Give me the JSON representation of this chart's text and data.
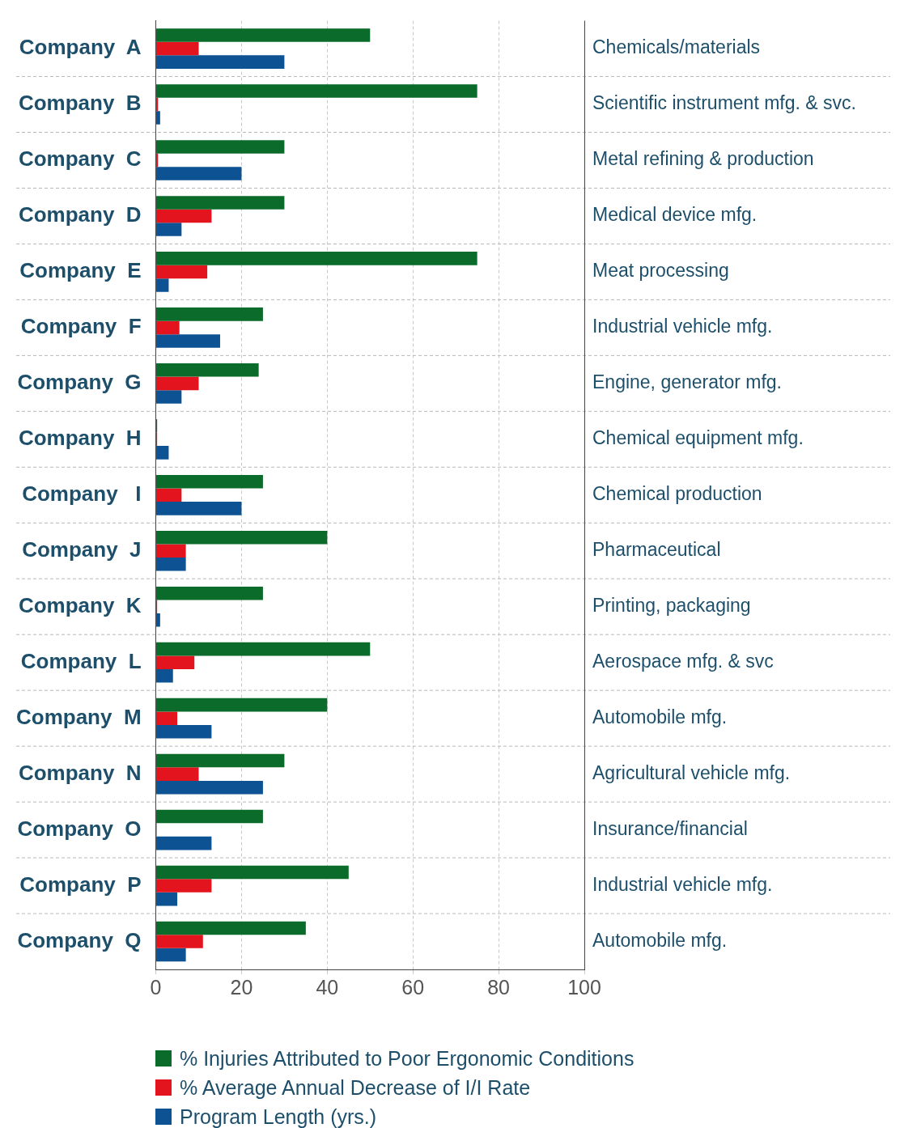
{
  "chart_data": {
    "type": "bar",
    "orientation": "horizontal",
    "categories": [
      "Company  A",
      "Company  B",
      "Company  C",
      "Company  D",
      "Company  E",
      "Company  F",
      "Company  G",
      "Company  H",
      "Company   I",
      "Company  J",
      "Company  K",
      "Company  L",
      "Company  M",
      "Company  N",
      "Company  O",
      "Company  P",
      "Company  Q"
    ],
    "y2_categories": [
      "Chemicals/materials",
      "Scientific instrument mfg. & svc.",
      "Metal refining & production",
      "Medical device mfg.",
      "Meat processing",
      "Industrial vehicle mfg.",
      "Engine, generator mfg.",
      "Chemical equipment mfg.",
      "Chemical production",
      "Pharmaceutical",
      "Printing, packaging",
      "Aerospace mfg. & svc",
      "Automobile mfg.",
      "Agricultural vehicle mfg.",
      "Insurance/financial",
      "Industrial vehicle mfg.",
      "Automobile mfg."
    ],
    "series": [
      {
        "name": "% Injuries Attributed to Poor Ergonomic Conditions",
        "color": "#0b6b2b",
        "values": [
          50,
          75,
          30,
          30,
          75,
          25,
          24,
          0.3,
          25,
          40,
          25,
          50,
          40,
          30,
          25,
          45,
          35
        ]
      },
      {
        "name": "% Average Annual Decrease of I/I Rate",
        "color": "#e3141e",
        "values": [
          10,
          0.5,
          0.5,
          13,
          12,
          5.5,
          10,
          0.3,
          6,
          7,
          0.3,
          9,
          5,
          10,
          0.2,
          13,
          11
        ]
      },
      {
        "name": "Program Length (yrs.)",
        "color": "#0d5393",
        "values": [
          30,
          1,
          20,
          6,
          3,
          15,
          6,
          3,
          20,
          7,
          1,
          4,
          13,
          25,
          13,
          5,
          7
        ]
      }
    ],
    "xlim": [
      0,
      100
    ],
    "xticks": [
      0,
      20,
      40,
      60,
      80,
      100
    ],
    "grid": true,
    "legend": "bottom"
  }
}
